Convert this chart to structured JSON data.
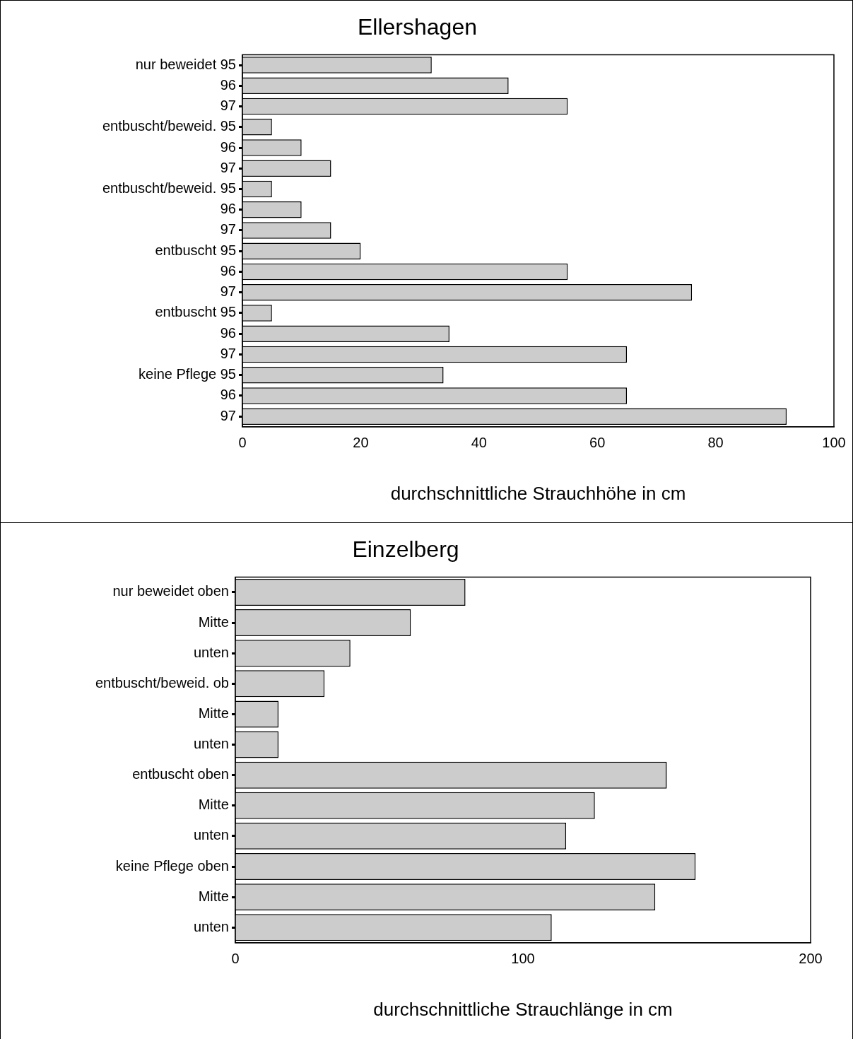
{
  "chart_data": [
    {
      "type": "bar",
      "orientation": "horizontal",
      "title": "Ellershagen",
      "xlabel": "durchschnittliche Strauchhöhe in cm",
      "categories": [
        "nur beweidet 95",
        "96",
        "97",
        "entbuscht/beweid. 95",
        "96",
        "97",
        "entbuscht/beweid. 95",
        "96",
        "97",
        "entbuscht 95",
        "96",
        "97",
        "entbuscht 95",
        "96",
        "97",
        "keine Pflege 95",
        "96",
        "97"
      ],
      "values": [
        32,
        45,
        55,
        5,
        10,
        15,
        5,
        10,
        15,
        20,
        55,
        76,
        5,
        35,
        65,
        34,
        65,
        92
      ],
      "color": "#cccccc",
      "xlim": [
        0,
        100
      ],
      "xticks": [
        0,
        20,
        40,
        60,
        80,
        100
      ]
    },
    {
      "type": "bar",
      "orientation": "horizontal",
      "title": "Einzelberg",
      "xlabel": "durchschnittliche Strauchlänge in cm",
      "categories": [
        "nur beweidet oben",
        "Mitte",
        "unten",
        "entbuscht/beweid. ob",
        "Mitte",
        "unten",
        "entbuscht oben",
        "Mitte",
        "unten",
        "keine Pflege oben",
        "Mitte",
        "unten"
      ],
      "values": [
        80,
        61,
        40,
        31,
        15,
        15,
        150,
        125,
        115,
        160,
        146,
        110
      ],
      "color": "#cccccc",
      "xlim": [
        0,
        200
      ],
      "xticks": [
        0,
        100,
        200
      ]
    }
  ]
}
